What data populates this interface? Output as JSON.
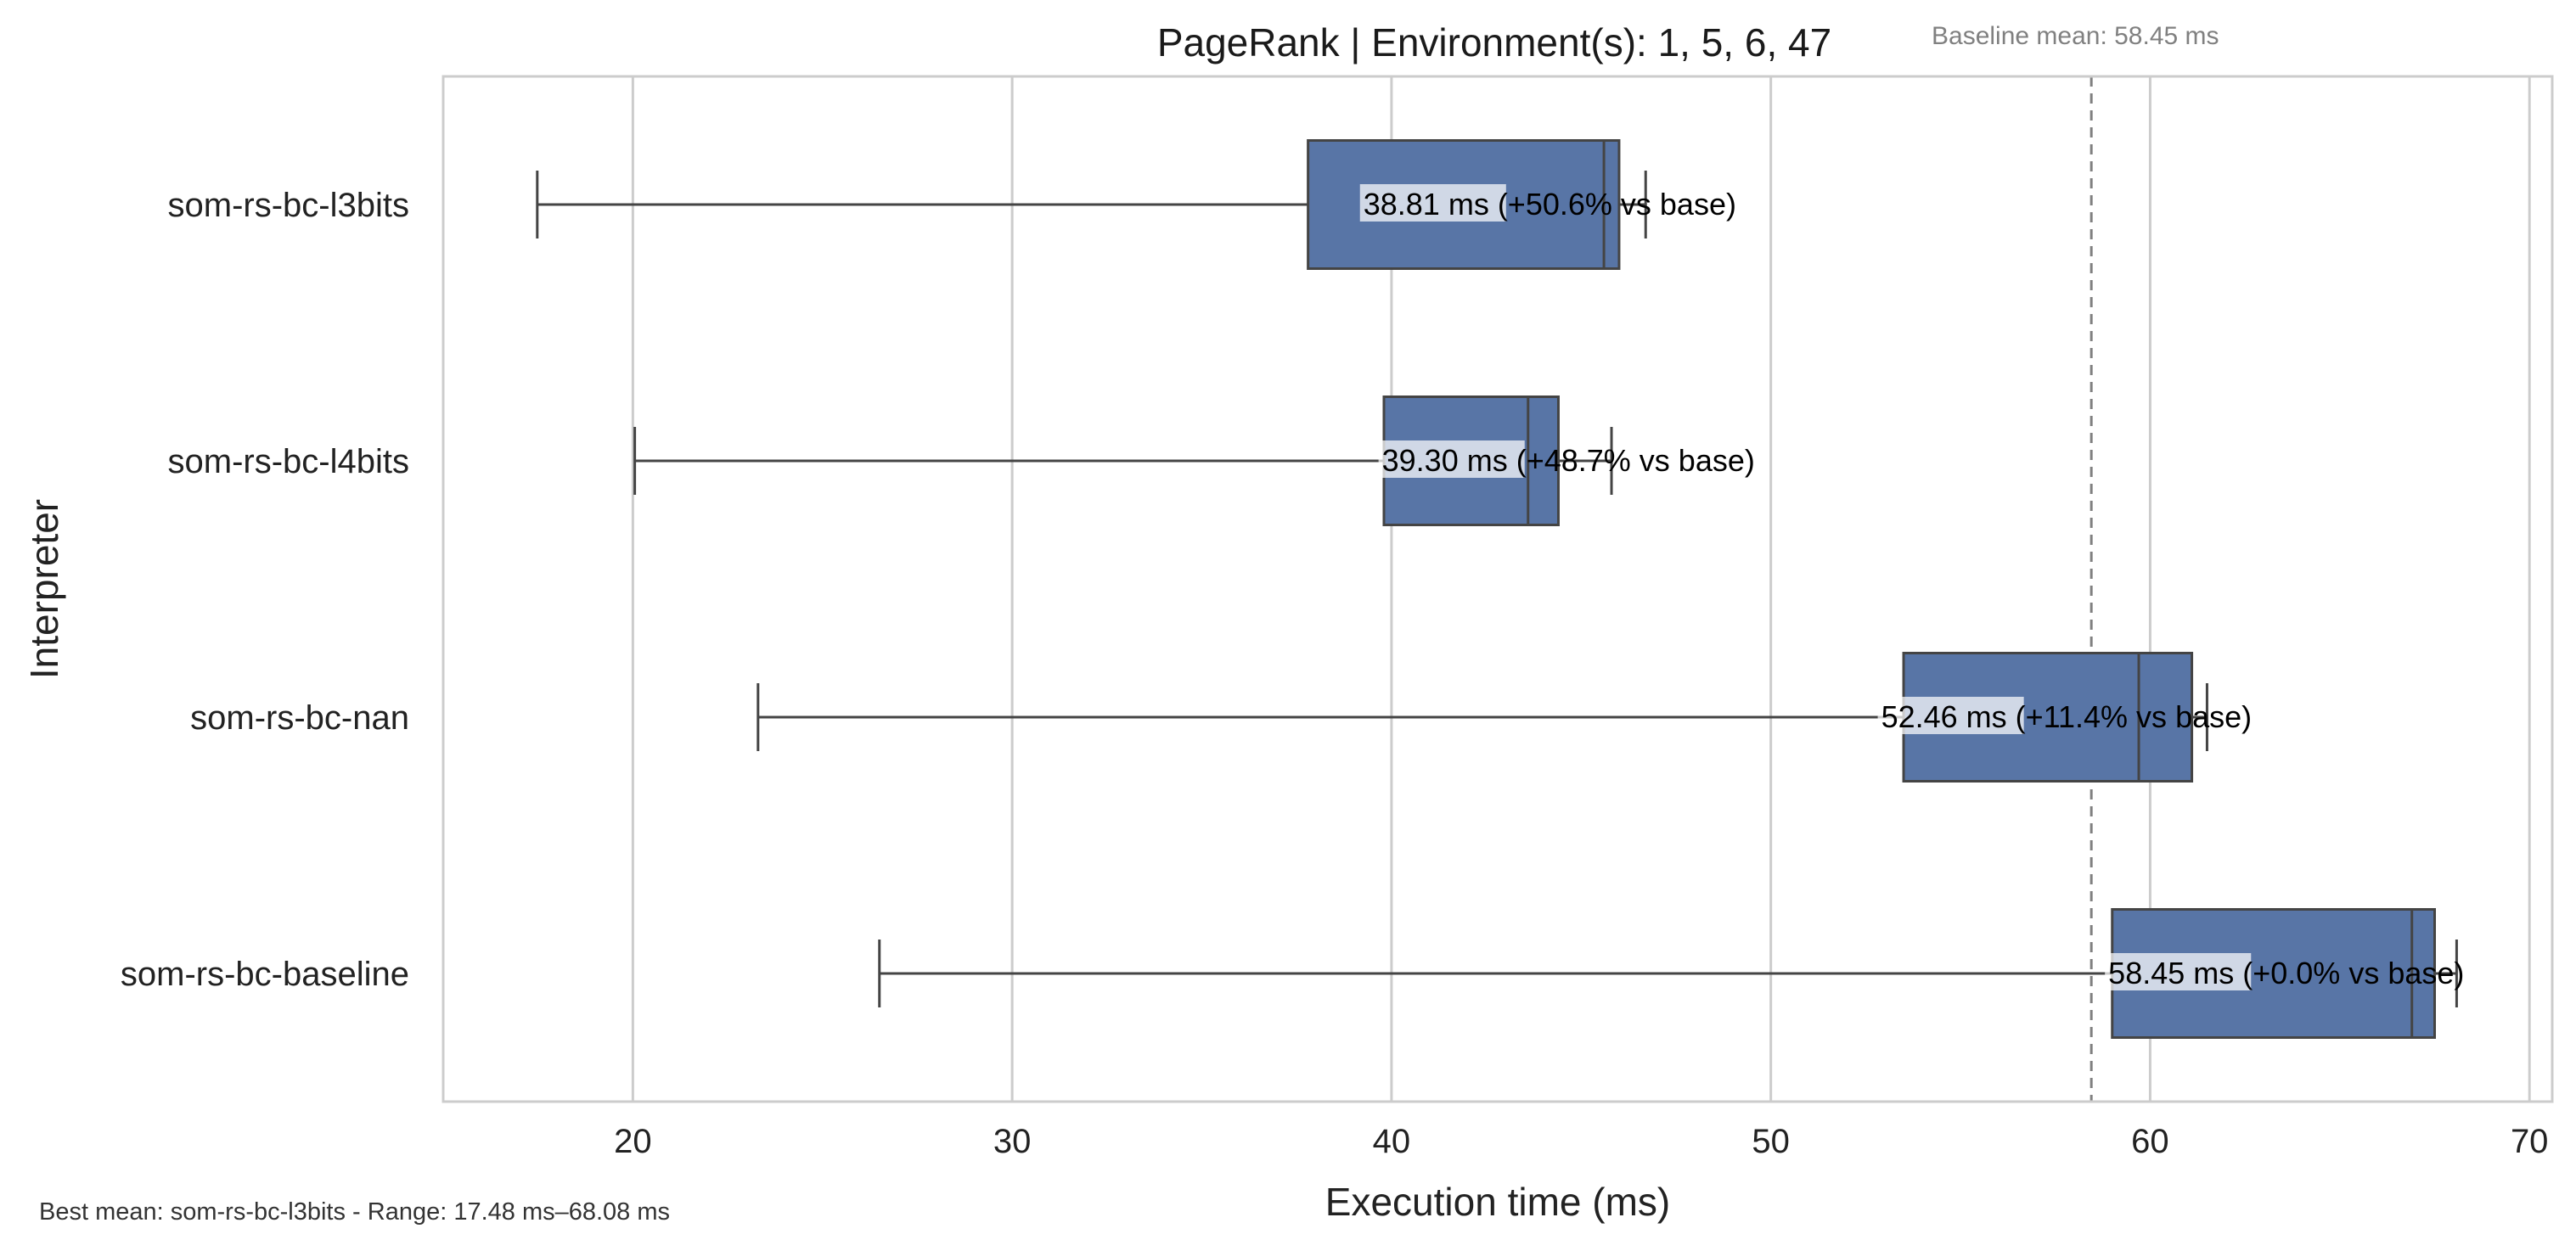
{
  "chart_data": {
    "type": "box",
    "orientation": "horizontal",
    "title": "PageRank | Environment(s): 1, 5, 6, 47",
    "baseline_note": "Baseline mean: 58.45 ms",
    "baseline_mean": 58.45,
    "xlabel": "Execution time (ms)",
    "ylabel": "Interpreter",
    "xlim": [
      15,
      70.6
    ],
    "xticks": [
      20,
      30,
      40,
      50,
      60,
      70
    ],
    "grid": "vertical",
    "footnote": "Best mean: som-rs-bc-l3bits - Range: 17.48 ms–68.08 ms",
    "box_color": "#5875a6",
    "edge_color": "#444444",
    "categories": [
      "som-rs-bc-l3bits",
      "som-rs-bc-l4bits",
      "som-rs-bc-nan",
      "som-rs-bc-baseline"
    ],
    "series": [
      {
        "category": "som-rs-bc-l3bits",
        "whisker_low": 17.48,
        "q1": 37.8,
        "median": 45.6,
        "q3": 46.0,
        "whisker_high": 46.7,
        "mean": 38.81,
        "label": "38.81 ms  (+50.6% vs base)"
      },
      {
        "category": "som-rs-bc-l4bits",
        "whisker_low": 20.05,
        "q1": 39.8,
        "median": 43.6,
        "q3": 44.4,
        "whisker_high": 45.8,
        "mean": 39.3,
        "label": "39.30 ms  (+48.7% vs base)"
      },
      {
        "category": "som-rs-bc-nan",
        "whisker_low": 23.3,
        "q1": 53.5,
        "median": 59.7,
        "q3": 61.1,
        "whisker_high": 61.5,
        "mean": 52.46,
        "label": "52.46 ms  (+11.4% vs base)"
      },
      {
        "category": "som-rs-bc-baseline",
        "whisker_low": 26.5,
        "q1": 59.0,
        "median": 66.9,
        "q3": 67.5,
        "whisker_high": 68.08,
        "mean": 58.45,
        "label": "58.45 ms  (+0.0% vs base)"
      }
    ]
  }
}
